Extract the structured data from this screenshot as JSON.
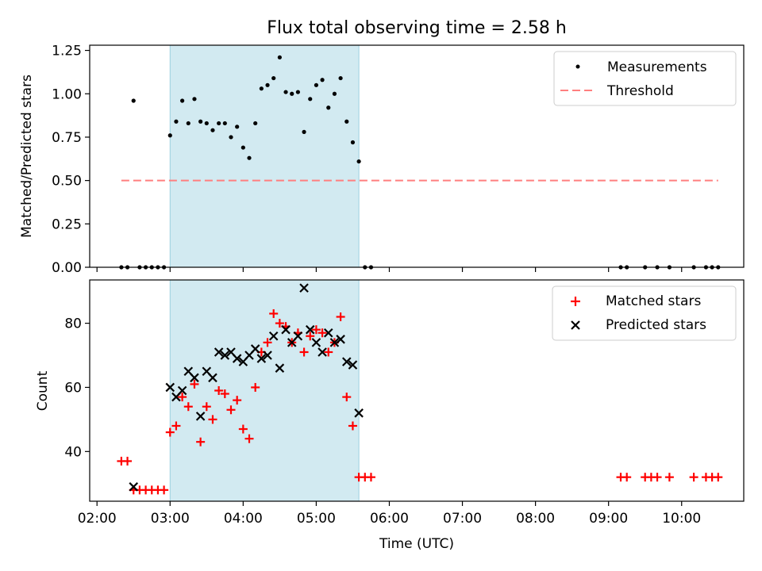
{
  "title": "Flux total observing time = 2.58 h",
  "chart_data": [
    {
      "type": "scatter",
      "panel": "top",
      "ylabel": "Matched/Predicted stars",
      "xlabel": "",
      "x_range_hours": [
        1.9,
        10.85
      ],
      "ylim": [
        0,
        1.28
      ],
      "y_ticks": [
        0.0,
        0.25,
        0.5,
        0.75,
        1.0,
        1.25
      ],
      "y_tick_labels": [
        "0.00",
        "0.25",
        "0.50",
        "0.75",
        "1.00",
        "1.25"
      ],
      "grid": false,
      "legend_position": "upper right",
      "shaded_interval": {
        "start": "03:00",
        "end": "05:35",
        "color": "#add8e6"
      },
      "threshold": {
        "name": "Threshold",
        "value": 0.5,
        "x_start": "02:20",
        "x_end": "10:30",
        "color": "#ff7f7f",
        "style": "dashed"
      },
      "series": [
        {
          "name": "Measurements",
          "color": "#000000",
          "marker": "dot",
          "points": [
            [
              "02:20",
              0.0
            ],
            [
              "02:25",
              0.0
            ],
            [
              "02:30",
              0.96
            ],
            [
              "02:35",
              0.0
            ],
            [
              "02:40",
              0.0
            ],
            [
              "02:45",
              0.0
            ],
            [
              "02:50",
              0.0
            ],
            [
              "02:55",
              0.0
            ],
            [
              "03:00",
              0.76
            ],
            [
              "03:05",
              0.84
            ],
            [
              "03:10",
              0.96
            ],
            [
              "03:15",
              0.83
            ],
            [
              "03:20",
              0.97
            ],
            [
              "03:25",
              0.84
            ],
            [
              "03:30",
              0.83
            ],
            [
              "03:35",
              0.79
            ],
            [
              "03:40",
              0.83
            ],
            [
              "03:45",
              0.83
            ],
            [
              "03:50",
              0.75
            ],
            [
              "03:55",
              0.81
            ],
            [
              "04:00",
              0.69
            ],
            [
              "04:05",
              0.63
            ],
            [
              "04:10",
              0.83
            ],
            [
              "04:15",
              1.03
            ],
            [
              "04:20",
              1.05
            ],
            [
              "04:25",
              1.09
            ],
            [
              "04:30",
              1.21
            ],
            [
              "04:35",
              1.01
            ],
            [
              "04:40",
              1.0
            ],
            [
              "04:45",
              1.01
            ],
            [
              "04:50",
              0.78
            ],
            [
              "04:55",
              0.97
            ],
            [
              "05:00",
              1.05
            ],
            [
              "05:05",
              1.08
            ],
            [
              "05:10",
              0.92
            ],
            [
              "05:15",
              1.0
            ],
            [
              "05:20",
              1.09
            ],
            [
              "05:25",
              0.84
            ],
            [
              "05:30",
              0.72
            ],
            [
              "05:35",
              0.61
            ],
            [
              "05:40",
              0.0
            ],
            [
              "05:45",
              0.0
            ],
            [
              "09:10",
              0.0
            ],
            [
              "09:15",
              0.0
            ],
            [
              "09:30",
              0.0
            ],
            [
              "09:40",
              0.0
            ],
            [
              "09:50",
              0.0
            ],
            [
              "10:10",
              0.0
            ],
            [
              "10:20",
              0.0
            ],
            [
              "10:25",
              0.0
            ],
            [
              "10:30",
              0.0
            ]
          ]
        }
      ]
    },
    {
      "type": "scatter",
      "panel": "bottom",
      "ylabel": "Count",
      "xlabel": "Time (UTC)",
      "x_range_hours": [
        1.9,
        10.85
      ],
      "ylim": [
        24.5,
        93.5
      ],
      "y_ticks": [
        40,
        60,
        80
      ],
      "y_tick_labels": [
        "40",
        "60",
        "80"
      ],
      "x_ticks": [
        "02:00",
        "03:00",
        "04:00",
        "05:00",
        "06:00",
        "07:00",
        "08:00",
        "09:00",
        "10:00"
      ],
      "grid": false,
      "legend_position": "upper right",
      "shaded_interval": {
        "start": "03:00",
        "end": "05:35",
        "color": "#add8e6"
      },
      "series": [
        {
          "name": "Matched stars",
          "color": "#ff0000",
          "marker": "plus",
          "points": [
            [
              "02:20",
              37
            ],
            [
              "02:25",
              37
            ],
            [
              "02:30",
              28
            ],
            [
              "02:35",
              28
            ],
            [
              "02:40",
              28
            ],
            [
              "02:45",
              28
            ],
            [
              "02:50",
              28
            ],
            [
              "02:55",
              28
            ],
            [
              "03:00",
              46
            ],
            [
              "03:05",
              48
            ],
            [
              "03:10",
              57
            ],
            [
              "03:15",
              54
            ],
            [
              "03:20",
              61
            ],
            [
              "03:25",
              43
            ],
            [
              "03:30",
              54
            ],
            [
              "03:35",
              50
            ],
            [
              "03:40",
              59
            ],
            [
              "03:45",
              58
            ],
            [
              "03:50",
              53
            ],
            [
              "03:55",
              56
            ],
            [
              "04:00",
              47
            ],
            [
              "04:05",
              44
            ],
            [
              "04:10",
              60
            ],
            [
              "04:15",
              71
            ],
            [
              "04:20",
              74
            ],
            [
              "04:25",
              83
            ],
            [
              "04:30",
              80
            ],
            [
              "04:35",
              79
            ],
            [
              "04:40",
              74
            ],
            [
              "04:45",
              77
            ],
            [
              "04:50",
              71
            ],
            [
              "04:55",
              76
            ],
            [
              "05:00",
              78
            ],
            [
              "05:05",
              77
            ],
            [
              "05:10",
              71
            ],
            [
              "05:15",
              74
            ],
            [
              "05:20",
              82
            ],
            [
              "05:25",
              57
            ],
            [
              "05:30",
              48
            ],
            [
              "05:35",
              32
            ],
            [
              "05:40",
              32
            ],
            [
              "05:45",
              32
            ],
            [
              "09:10",
              32
            ],
            [
              "09:15",
              32
            ],
            [
              "09:30",
              32
            ],
            [
              "09:35",
              32
            ],
            [
              "09:40",
              32
            ],
            [
              "09:50",
              32
            ],
            [
              "10:10",
              32
            ],
            [
              "10:20",
              32
            ],
            [
              "10:25",
              32
            ],
            [
              "10:30",
              32
            ]
          ]
        },
        {
          "name": "Predicted stars",
          "color": "#000000",
          "marker": "x",
          "points": [
            [
              "02:30",
              29
            ],
            [
              "03:00",
              60
            ],
            [
              "03:05",
              57
            ],
            [
              "03:10",
              59
            ],
            [
              "03:15",
              65
            ],
            [
              "03:20",
              63
            ],
            [
              "03:25",
              51
            ],
            [
              "03:30",
              65
            ],
            [
              "03:35",
              63
            ],
            [
              "03:40",
              71
            ],
            [
              "03:45",
              70
            ],
            [
              "03:50",
              71
            ],
            [
              "03:55",
              69
            ],
            [
              "04:00",
              68
            ],
            [
              "04:05",
              70
            ],
            [
              "04:10",
              72
            ],
            [
              "04:15",
              69
            ],
            [
              "04:20",
              70
            ],
            [
              "04:25",
              76
            ],
            [
              "04:30",
              66
            ],
            [
              "04:35",
              78
            ],
            [
              "04:40",
              74
            ],
            [
              "04:45",
              76
            ],
            [
              "04:50",
              91
            ],
            [
              "04:55",
              78
            ],
            [
              "05:00",
              74
            ],
            [
              "05:05",
              71
            ],
            [
              "05:10",
              77
            ],
            [
              "05:15",
              74
            ],
            [
              "05:20",
              75
            ],
            [
              "05:25",
              68
            ],
            [
              "05:30",
              67
            ],
            [
              "05:35",
              52
            ]
          ]
        }
      ]
    }
  ]
}
